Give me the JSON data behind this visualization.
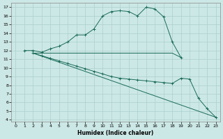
{
  "line1_x": [
    1,
    2,
    3,
    4,
    5,
    6,
    7,
    8,
    9,
    10,
    11,
    12,
    13,
    14,
    15,
    16,
    17,
    18,
    19
  ],
  "line1_y": [
    12.0,
    12.0,
    11.8,
    12.2,
    12.5,
    13.0,
    13.8,
    13.8,
    14.5,
    16.0,
    16.5,
    16.6,
    16.5,
    16.0,
    17.0,
    16.8,
    15.9,
    13.0,
    11.2
  ],
  "line2_x": [
    2,
    3,
    4,
    5,
    6,
    7,
    8,
    9,
    10,
    11,
    12,
    13,
    14,
    15,
    16,
    17,
    18,
    19
  ],
  "line2_y": [
    11.7,
    11.7,
    11.7,
    11.7,
    11.7,
    11.7,
    11.7,
    11.7,
    11.7,
    11.7,
    11.7,
    11.7,
    11.7,
    11.7,
    11.7,
    11.7,
    11.7,
    11.2
  ],
  "line3_x": [
    2,
    3,
    4,
    5,
    6,
    7,
    8,
    9,
    10,
    11,
    12,
    13,
    14,
    15,
    16,
    17,
    18,
    19,
    20,
    21,
    22,
    23
  ],
  "line3_y": [
    11.7,
    11.4,
    11.1,
    10.8,
    10.5,
    10.2,
    9.9,
    9.6,
    9.3,
    9.0,
    8.8,
    8.7,
    8.6,
    8.5,
    8.4,
    8.3,
    8.2,
    8.8,
    8.7,
    6.5,
    5.3,
    4.3
  ],
  "line4_x": [
    2,
    23
  ],
  "line4_y": [
    11.7,
    4.3
  ],
  "line_color": "#1a6b5a",
  "bg_color": "#cce8e6",
  "grid_major_color": "#aacfcd",
  "grid_minor_color": "#bbdcda",
  "xlabel": "Humidex (Indice chaleur)",
  "ylim": [
    3.8,
    17.5
  ],
  "xlim": [
    -0.5,
    23.5
  ],
  "yticks": [
    4,
    5,
    6,
    7,
    8,
    9,
    10,
    11,
    12,
    13,
    14,
    15,
    16,
    17
  ],
  "xticks": [
    0,
    1,
    2,
    3,
    4,
    5,
    6,
    7,
    8,
    9,
    10,
    11,
    12,
    13,
    14,
    15,
    16,
    17,
    18,
    19,
    20,
    21,
    22,
    23
  ]
}
